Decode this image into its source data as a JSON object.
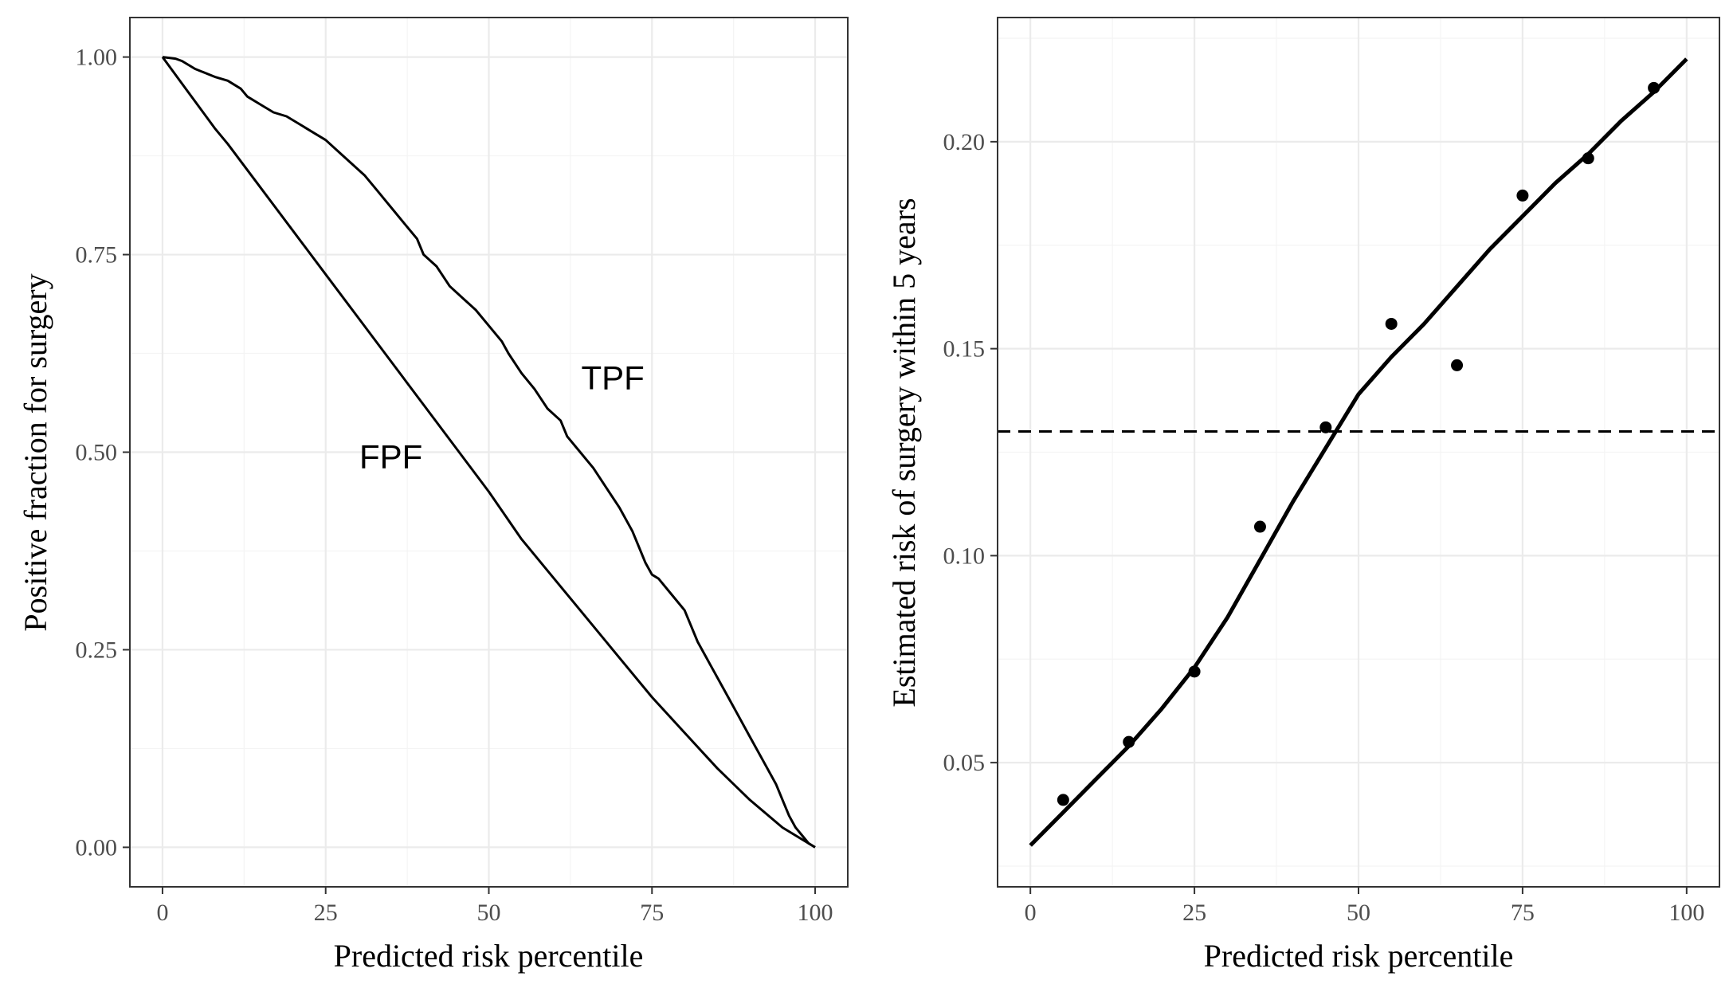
{
  "chart_data": [
    {
      "type": "line",
      "title": "",
      "xlabel": "Predicted risk percentile",
      "ylabel": "Positive fraction for surgery",
      "xlim": [
        -5,
        105
      ],
      "ylim": [
        -0.05,
        1.05
      ],
      "xticks": [
        0,
        25,
        50,
        75,
        100
      ],
      "xtick_labels": [
        "0",
        "25",
        "50",
        "75",
        "100"
      ],
      "yticks": [
        0,
        0.25,
        0.5,
        0.75,
        1.0
      ],
      "ytick_labels": [
        "0.00",
        "0.25",
        "0.50",
        "0.75",
        "1.00"
      ],
      "grid": true,
      "series": [
        {
          "name": "TPF",
          "x": [
            0,
            2,
            3,
            5,
            8,
            10,
            12,
            13,
            15,
            17,
            19,
            21,
            23,
            25,
            27,
            29,
            31,
            33,
            35,
            37,
            39,
            40,
            42,
            44,
            46,
            48,
            50,
            52,
            53,
            55,
            57,
            59,
            61,
            62,
            64,
            66,
            68,
            70,
            72,
            73,
            74,
            75,
            76,
            78,
            80,
            81,
            82,
            84,
            86,
            88,
            90,
            92,
            94,
            95,
            96,
            97,
            98,
            99,
            100
          ],
          "values": [
            1.0,
            0.998,
            0.995,
            0.985,
            0.975,
            0.97,
            0.96,
            0.95,
            0.94,
            0.93,
            0.925,
            0.915,
            0.905,
            0.895,
            0.88,
            0.865,
            0.85,
            0.83,
            0.81,
            0.79,
            0.77,
            0.75,
            0.735,
            0.71,
            0.695,
            0.68,
            0.66,
            0.64,
            0.625,
            0.6,
            0.58,
            0.555,
            0.54,
            0.52,
            0.5,
            0.48,
            0.455,
            0.43,
            0.4,
            0.38,
            0.36,
            0.345,
            0.34,
            0.32,
            0.3,
            0.28,
            0.26,
            0.23,
            0.2,
            0.17,
            0.14,
            0.11,
            0.08,
            0.06,
            0.04,
            0.025,
            0.015,
            0.005,
            0.0
          ]
        },
        {
          "name": "FPF",
          "x": [
            0,
            4,
            8,
            9,
            10,
            15,
            20,
            25,
            30,
            35,
            40,
            45,
            50,
            55,
            60,
            65,
            70,
            75,
            80,
            85,
            90,
            95,
            100
          ],
          "values": [
            1.0,
            0.955,
            0.91,
            0.9,
            0.89,
            0.835,
            0.78,
            0.725,
            0.67,
            0.615,
            0.56,
            0.505,
            0.45,
            0.39,
            0.34,
            0.29,
            0.24,
            0.19,
            0.145,
            0.1,
            0.06,
            0.025,
            0.0
          ]
        }
      ],
      "annotations": [
        {
          "text": "TPF",
          "x": 69,
          "y": 0.595
        },
        {
          "text": "FPF",
          "x": 35,
          "y": 0.495
        }
      ]
    },
    {
      "type": "scatter",
      "title": "",
      "xlabel": "Predicted risk percentile",
      "ylabel": "Estimated risk of surgery within 5 years",
      "xlim": [
        -5,
        105
      ],
      "ylim": [
        0.02,
        0.23
      ],
      "xticks": [
        0,
        25,
        50,
        75,
        100
      ],
      "xtick_labels": [
        "0",
        "25",
        "50",
        "75",
        "100"
      ],
      "yticks": [
        0.05,
        0.1,
        0.15,
        0.2
      ],
      "ytick_labels": [
        "0.05",
        "0.10",
        "0.15",
        "0.20"
      ],
      "grid": true,
      "points": {
        "x": [
          5,
          15,
          25,
          35,
          45,
          55,
          65,
          75,
          85,
          95
        ],
        "values": [
          0.041,
          0.055,
          0.072,
          0.107,
          0.131,
          0.156,
          0.146,
          0.187,
          0.196,
          0.213
        ]
      },
      "smooth_curve": {
        "x": [
          0,
          5,
          10,
          15,
          20,
          25,
          30,
          35,
          40,
          45,
          50,
          55,
          60,
          65,
          70,
          75,
          80,
          85,
          90,
          95,
          100
        ],
        "values": [
          0.03,
          0.038,
          0.046,
          0.054,
          0.063,
          0.073,
          0.085,
          0.099,
          0.113,
          0.126,
          0.139,
          0.148,
          0.156,
          0.165,
          0.174,
          0.182,
          0.19,
          0.197,
          0.205,
          0.212,
          0.22
        ]
      },
      "reference_line": {
        "y": 0.13,
        "style": "dashed"
      }
    }
  ]
}
